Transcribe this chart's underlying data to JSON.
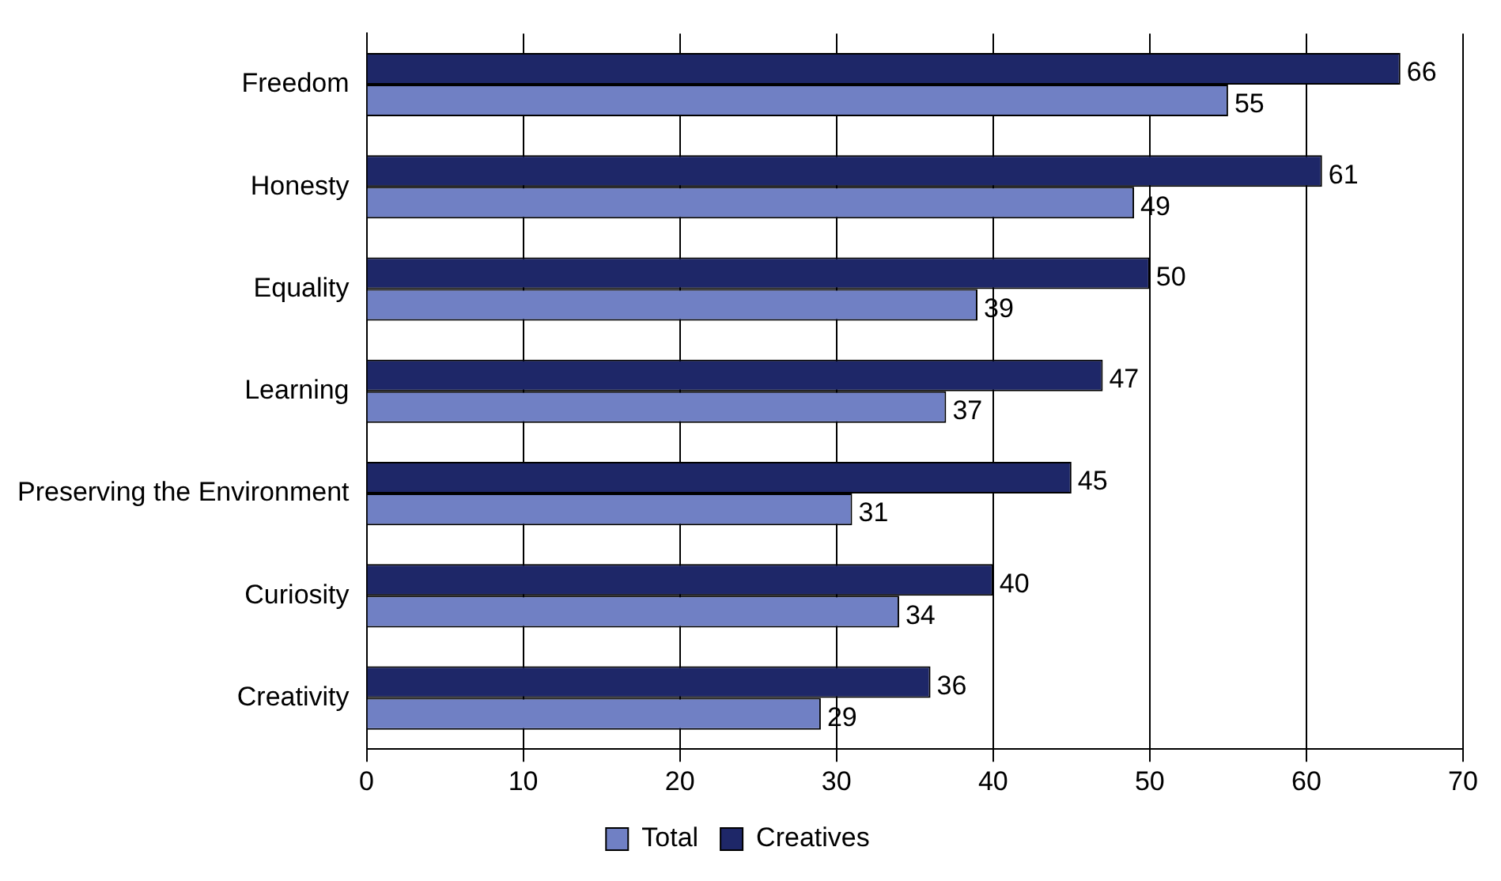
{
  "chart_data": {
    "type": "bar",
    "orientation": "horizontal",
    "categories": [
      "Freedom",
      "Honesty",
      "Equality",
      "Learning",
      "Preserving the Environment",
      "Curiosity",
      "Creativity"
    ],
    "series": [
      {
        "name": "Total",
        "color": "#7080c4",
        "values": [
          55,
          49,
          39,
          37,
          31,
          34,
          29
        ]
      },
      {
        "name": "Creatives",
        "color": "#1e2768",
        "values": [
          66,
          61,
          50,
          47,
          45,
          40,
          36
        ]
      }
    ],
    "xlim": [
      0,
      70
    ],
    "xticks": [
      0,
      10,
      20,
      30,
      40,
      50,
      60,
      70
    ],
    "grid": "x",
    "legend": "bottom",
    "data_labels": true
  }
}
